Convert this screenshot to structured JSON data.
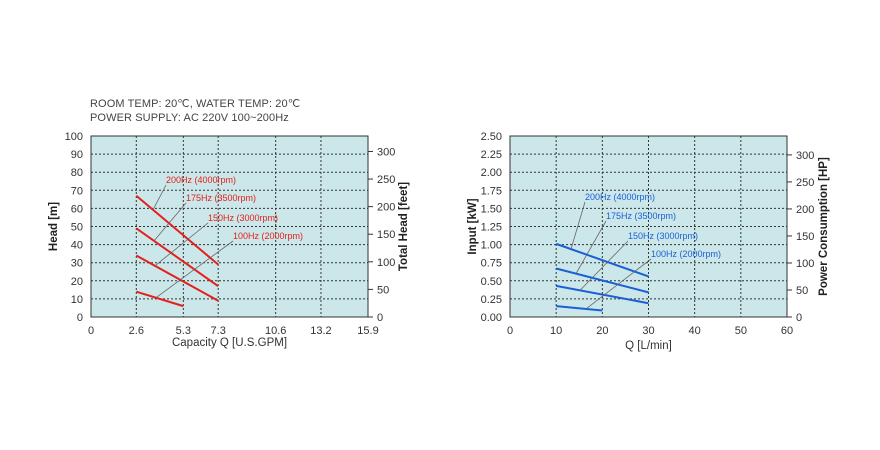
{
  "conditions": {
    "line1": "ROOM TEMP: 20℃, WATER TEMP: 20℃",
    "line2": "POWER SUPPLY: AC 220V 100~200Hz"
  },
  "chart_data": [
    {
      "type": "line",
      "title": "",
      "plot_bg": "#cce7ea",
      "series_color": "#e3201b",
      "xlabel": "Capacity Q [U.S.GPM]",
      "ylabel": "Head [m]",
      "y2label": "Total Head [feet]",
      "xlim": [
        0,
        15.9
      ],
      "xticks": [
        "0",
        "2.6",
        "5.3",
        "7.3",
        "10.6",
        "13.2",
        "15.9"
      ],
      "ylim": [
        0,
        100
      ],
      "yticks": [
        "0",
        "10",
        "20",
        "30",
        "40",
        "50",
        "60",
        "70",
        "80",
        "90",
        "100"
      ],
      "y2lim": [
        0,
        328
      ],
      "y2ticks": [
        "0",
        "50",
        "100",
        "150",
        "200",
        "250",
        "300"
      ],
      "grid": true,
      "series": [
        {
          "name": "200Hz (4000rpm)",
          "x": [
            2.6,
            7.3
          ],
          "y": [
            67,
            29
          ]
        },
        {
          "name": "175Hz (3500rpm)",
          "x": [
            2.6,
            7.3
          ],
          "y": [
            49,
            17
          ]
        },
        {
          "name": "150Hz (3000rpm)",
          "x": [
            2.6,
            7.3
          ],
          "y": [
            34,
            9
          ]
        },
        {
          "name": "100Hz (2000rpm)",
          "x": [
            2.6,
            5.3
          ],
          "y": [
            14,
            6
          ]
        }
      ]
    },
    {
      "type": "line",
      "title": "",
      "plot_bg": "#cce7ea",
      "series_color": "#1a5fd6",
      "xlabel": "Q [L/min]",
      "ylabel": "Input [kW]",
      "y2label": "Power Consumption [HP]",
      "xlim": [
        0,
        60
      ],
      "xticks": [
        "0",
        "10",
        "20",
        "30",
        "40",
        "50",
        "60"
      ],
      "ylim": [
        0,
        2.5
      ],
      "yticks": [
        "0.00",
        "0.25",
        "0.50",
        "0.75",
        "1.00",
        "1.25",
        "1.50",
        "1.75",
        "2.00",
        "2.25",
        "2.50"
      ],
      "y2lim": [
        0,
        335
      ],
      "y2ticks": [
        "0",
        "50",
        "100",
        "150",
        "200",
        "250",
        "300"
      ],
      "grid": true,
      "series": [
        {
          "name": "200Hz (4000rpm)",
          "x": [
            10,
            30
          ],
          "y": [
            1.01,
            0.56
          ]
        },
        {
          "name": "175Hz (3500rpm)",
          "x": [
            10,
            30
          ],
          "y": [
            0.67,
            0.34
          ]
        },
        {
          "name": "150Hz (3000rpm)",
          "x": [
            10,
            30
          ],
          "y": [
            0.43,
            0.19
          ]
        },
        {
          "name": "100Hz (2000rpm)",
          "x": [
            10,
            20
          ],
          "y": [
            0.15,
            0.09
          ]
        }
      ]
    }
  ]
}
